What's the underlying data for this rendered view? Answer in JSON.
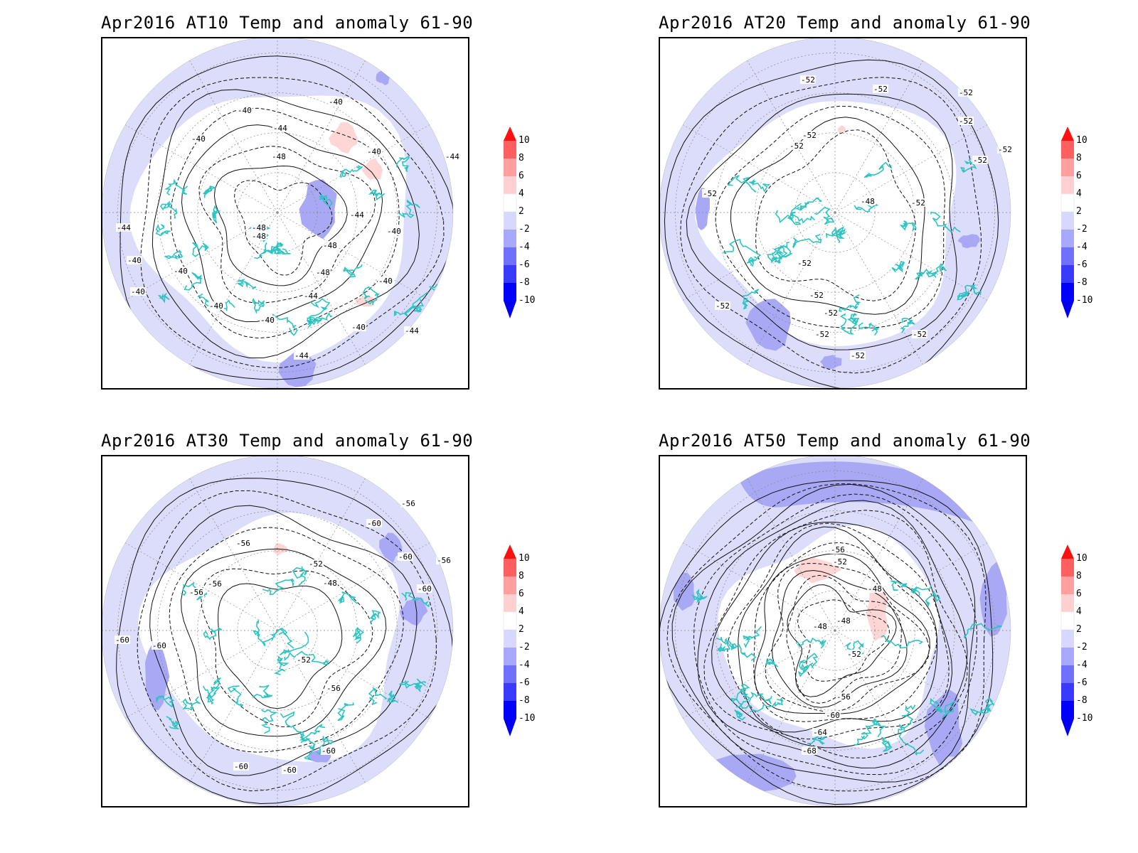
{
  "panels": [
    {
      "id": "at10",
      "title": "Apr2016 AT10 Temp and anomaly 61-90",
      "contour_labels": [
        {
          "text": "-40",
          "x": 190,
          "y": 105
        },
        {
          "text": "-40",
          "x": 318,
          "y": 93
        },
        {
          "text": "-44",
          "x": 240,
          "y": 130
        },
        {
          "text": "-40",
          "x": 125,
          "y": 145
        },
        {
          "text": "-48",
          "x": 238,
          "y": 170
        },
        {
          "text": "-40",
          "x": 372,
          "y": 163
        },
        {
          "text": "-44",
          "x": 482,
          "y": 170
        },
        {
          "text": "-44",
          "x": 20,
          "y": 270
        },
        {
          "text": "-48",
          "x": 210,
          "y": 270
        },
        {
          "text": "-48",
          "x": 210,
          "y": 282
        },
        {
          "text": "-44",
          "x": 348,
          "y": 252
        },
        {
          "text": "-40",
          "x": 400,
          "y": 275
        },
        {
          "text": "-48",
          "x": 310,
          "y": 295
        },
        {
          "text": "-40",
          "x": 35,
          "y": 316
        },
        {
          "text": "-40",
          "x": 100,
          "y": 331
        },
        {
          "text": "-48",
          "x": 300,
          "y": 333
        },
        {
          "text": "-40",
          "x": 388,
          "y": 345
        },
        {
          "text": "-40",
          "x": 40,
          "y": 360
        },
        {
          "text": "-44",
          "x": 283,
          "y": 366
        },
        {
          "text": "-40",
          "x": 150,
          "y": 380
        },
        {
          "text": "-40",
          "x": 222,
          "y": 400
        },
        {
          "text": "-40",
          "x": 350,
          "y": 410
        },
        {
          "text": "-44",
          "x": 425,
          "y": 415
        },
        {
          "text": "-44",
          "x": 270,
          "y": 450
        }
      ]
    },
    {
      "id": "at20",
      "title": "Apr2016 AT20 Temp and anomaly 61-90",
      "contour_labels": [
        {
          "text": "-52",
          "x": 198,
          "y": 62
        },
        {
          "text": "-52",
          "x": 300,
          "y": 75
        },
        {
          "text": "-52",
          "x": 420,
          "y": 80
        },
        {
          "text": "-52",
          "x": 420,
          "y": 120
        },
        {
          "text": "-52",
          "x": 200,
          "y": 140
        },
        {
          "text": "-52",
          "x": 182,
          "y": 155
        },
        {
          "text": "-52",
          "x": 475,
          "y": 160
        },
        {
          "text": "-52",
          "x": 440,
          "y": 175
        },
        {
          "text": "-52",
          "x": 60,
          "y": 222
        },
        {
          "text": "-48",
          "x": 282,
          "y": 233
        },
        {
          "text": "-52",
          "x": 353,
          "y": 235
        },
        {
          "text": "-52",
          "x": 193,
          "y": 320
        },
        {
          "text": "-52",
          "x": 210,
          "y": 365
        },
        {
          "text": "-52",
          "x": 78,
          "y": 380
        },
        {
          "text": "-52",
          "x": 230,
          "y": 390
        },
        {
          "text": "-52",
          "x": 218,
          "y": 420
        },
        {
          "text": "-52",
          "x": 355,
          "y": 420
        },
        {
          "text": "-52",
          "x": 268,
          "y": 450
        }
      ]
    },
    {
      "id": "at30",
      "title": "Apr2016 AT30 Temp and anomaly 61-90",
      "contour_labels": [
        {
          "text": "-56",
          "x": 420,
          "y": 70
        },
        {
          "text": "-60",
          "x": 372,
          "y": 98
        },
        {
          "text": "-56",
          "x": 188,
          "y": 126
        },
        {
          "text": "-60",
          "x": 416,
          "y": 145
        },
        {
          "text": "-52",
          "x": 290,
          "y": 155
        },
        {
          "text": "-56",
          "x": 470,
          "y": 150
        },
        {
          "text": "-48",
          "x": 310,
          "y": 182
        },
        {
          "text": "-60",
          "x": 443,
          "y": 190
        },
        {
          "text": "-56",
          "x": 122,
          "y": 195
        },
        {
          "text": "-56",
          "x": 148,
          "y": 183
        },
        {
          "text": "-60",
          "x": 18,
          "y": 262
        },
        {
          "text": "-60",
          "x": 70,
          "y": 270
        },
        {
          "text": "-52",
          "x": 273,
          "y": 290
        },
        {
          "text": "-56",
          "x": 315,
          "y": 330
        },
        {
          "text": "-60",
          "x": 308,
          "y": 418
        },
        {
          "text": "-60",
          "x": 185,
          "y": 440
        },
        {
          "text": "-60",
          "x": 253,
          "y": 445
        }
      ]
    },
    {
      "id": "at50",
      "title": "Apr2016 AT50 Temp and anomaly 61-90",
      "contour_labels": [
        {
          "text": "-56",
          "x": 240,
          "y": 135
        },
        {
          "text": "-52",
          "x": 243,
          "y": 152
        },
        {
          "text": "-48",
          "x": 292,
          "y": 190
        },
        {
          "text": "-48",
          "x": 215,
          "y": 243
        },
        {
          "text": "-48",
          "x": 248,
          "y": 235
        },
        {
          "text": "-52",
          "x": 263,
          "y": 282
        },
        {
          "text": "-56",
          "x": 248,
          "y": 342
        },
        {
          "text": "-60",
          "x": 233,
          "y": 368
        },
        {
          "text": "-64",
          "x": 215,
          "y": 392
        },
        {
          "text": "-68",
          "x": 200,
          "y": 418
        }
      ]
    }
  ],
  "colorbar": {
    "labels": [
      "10",
      "8",
      "6",
      "4",
      "2",
      "-2",
      "-4",
      "-6",
      "-8",
      "-10"
    ],
    "colors": [
      "#ff1010",
      "#ff5f5f",
      "#ff9f9f",
      "#ffd0d0",
      "#ffffff",
      "#d7d7ff",
      "#a8a8ff",
      "#7070ff",
      "#3a3aff",
      "#0000ff",
      "#0000ee"
    ]
  },
  "colors": {
    "coastline": "#2ec4c4",
    "anomaly_light_blue": "#dcdcfb",
    "anomaly_mid_blue": "#a8a8f4",
    "anomaly_pink": "#ffd6d6"
  }
}
